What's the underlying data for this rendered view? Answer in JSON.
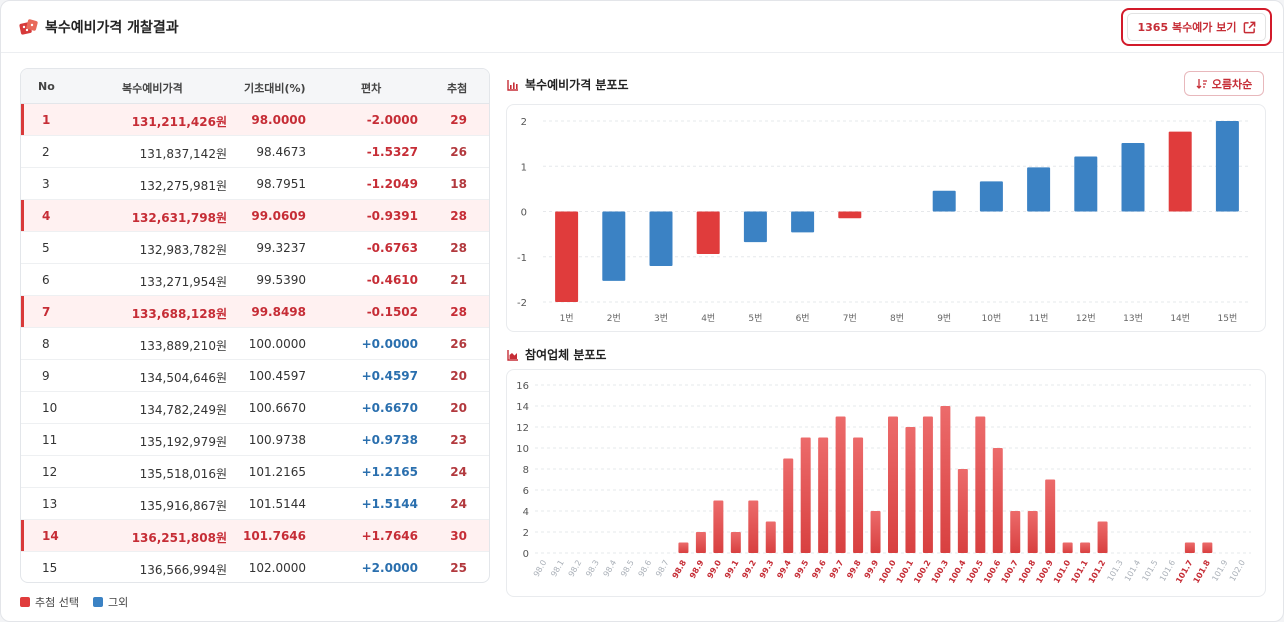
{
  "header": {
    "title": "복수예비가격 개찰결과",
    "view_button": "1365 복수예가 보기"
  },
  "table": {
    "columns": [
      "No",
      "복수예비가격",
      "기초대비(%)",
      "편차",
      "추첨"
    ],
    "rows": [
      {
        "no": "1",
        "price": "131,211,426원",
        "ratio": "98.0000",
        "deviation": "-2.0000",
        "count": "29",
        "selected": true
      },
      {
        "no": "2",
        "price": "131,837,142원",
        "ratio": "98.4673",
        "deviation": "-1.5327",
        "count": "26",
        "selected": false
      },
      {
        "no": "3",
        "price": "132,275,981원",
        "ratio": "98.7951",
        "deviation": "-1.2049",
        "count": "18",
        "selected": false
      },
      {
        "no": "4",
        "price": "132,631,798원",
        "ratio": "99.0609",
        "deviation": "-0.9391",
        "count": "28",
        "selected": true
      },
      {
        "no": "5",
        "price": "132,983,782원",
        "ratio": "99.3237",
        "deviation": "-0.6763",
        "count": "28",
        "selected": false
      },
      {
        "no": "6",
        "price": "133,271,954원",
        "ratio": "99.5390",
        "deviation": "-0.4610",
        "count": "21",
        "selected": false
      },
      {
        "no": "7",
        "price": "133,688,128원",
        "ratio": "99.8498",
        "deviation": "-0.1502",
        "count": "28",
        "selected": true
      },
      {
        "no": "8",
        "price": "133,889,210원",
        "ratio": "100.0000",
        "deviation": "+0.0000",
        "count": "26",
        "selected": false
      },
      {
        "no": "9",
        "price": "134,504,646원",
        "ratio": "100.4597",
        "deviation": "+0.4597",
        "count": "20",
        "selected": false
      },
      {
        "no": "10",
        "price": "134,782,249원",
        "ratio": "100.6670",
        "deviation": "+0.6670",
        "count": "20",
        "selected": false
      },
      {
        "no": "11",
        "price": "135,192,979원",
        "ratio": "100.9738",
        "deviation": "+0.9738",
        "count": "23",
        "selected": false
      },
      {
        "no": "12",
        "price": "135,518,016원",
        "ratio": "101.2165",
        "deviation": "+1.2165",
        "count": "24",
        "selected": false
      },
      {
        "no": "13",
        "price": "135,916,867원",
        "ratio": "101.5144",
        "deviation": "+1.5144",
        "count": "24",
        "selected": false
      },
      {
        "no": "14",
        "price": "136,251,808원",
        "ratio": "101.7646",
        "deviation": "+1.7646",
        "count": "30",
        "selected": true
      },
      {
        "no": "15",
        "price": "136,566,994원",
        "ratio": "102.0000",
        "deviation": "+2.0000",
        "count": "25",
        "selected": false
      }
    ]
  },
  "legend": {
    "selected_label": "추첨 선택",
    "other_label": "그외"
  },
  "colors": {
    "selected": "#e03c3c",
    "other": "#3b82c4",
    "accent": "#c62d36",
    "positive": "#2a6fae"
  },
  "deviation_chart": {
    "title": "복수예비가격 분포도",
    "sort_label": "오름차순"
  },
  "participants_chart": {
    "title": "참여업체 분포도"
  },
  "chart_data": [
    {
      "type": "bar",
      "title": "복수예비가격 분포도",
      "categories": [
        "1번",
        "2번",
        "3번",
        "4번",
        "5번",
        "6번",
        "7번",
        "8번",
        "9번",
        "10번",
        "11번",
        "12번",
        "13번",
        "14번",
        "15번"
      ],
      "values": [
        -2.0,
        -1.5327,
        -1.2049,
        -0.9391,
        -0.6763,
        -0.461,
        -0.1502,
        0.0,
        0.4597,
        0.667,
        0.9738,
        1.2165,
        1.5144,
        1.7646,
        2.0
      ],
      "selected": [
        true,
        false,
        false,
        true,
        false,
        false,
        true,
        false,
        false,
        false,
        false,
        false,
        false,
        true,
        false
      ],
      "yticks": [
        -2,
        -1,
        0,
        1,
        2
      ],
      "ylim": [
        -2,
        2
      ],
      "grid": true
    },
    {
      "type": "bar",
      "title": "참여업체 분포도",
      "categories": [
        "98.0",
        "98.1",
        "98.2",
        "98.3",
        "98.4",
        "98.5",
        "98.6",
        "98.7",
        "98.8",
        "98.9",
        "99.0",
        "99.1",
        "99.2",
        "99.3",
        "99.4",
        "99.5",
        "99.6",
        "99.7",
        "99.8",
        "99.9",
        "100.0",
        "100.1",
        "100.2",
        "100.3",
        "100.4",
        "100.5",
        "100.6",
        "100.7",
        "100.8",
        "100.9",
        "101.0",
        "101.1",
        "101.2",
        "101.3",
        "101.4",
        "101.5",
        "101.6",
        "101.7",
        "101.8",
        "101.9",
        "102.0"
      ],
      "values": [
        0,
        0,
        0,
        0,
        0,
        0,
        0,
        0,
        1,
        2,
        5,
        2,
        5,
        3,
        9,
        11,
        11,
        13,
        11,
        4,
        13,
        12,
        13,
        14,
        8,
        13,
        10,
        4,
        4,
        7,
        1,
        1,
        3,
        0,
        0,
        0,
        0,
        1,
        1,
        0,
        0
      ],
      "yticks": [
        0,
        2,
        4,
        6,
        8,
        10,
        12,
        14,
        16
      ],
      "ylim": [
        0,
        16
      ],
      "grid": true
    }
  ]
}
